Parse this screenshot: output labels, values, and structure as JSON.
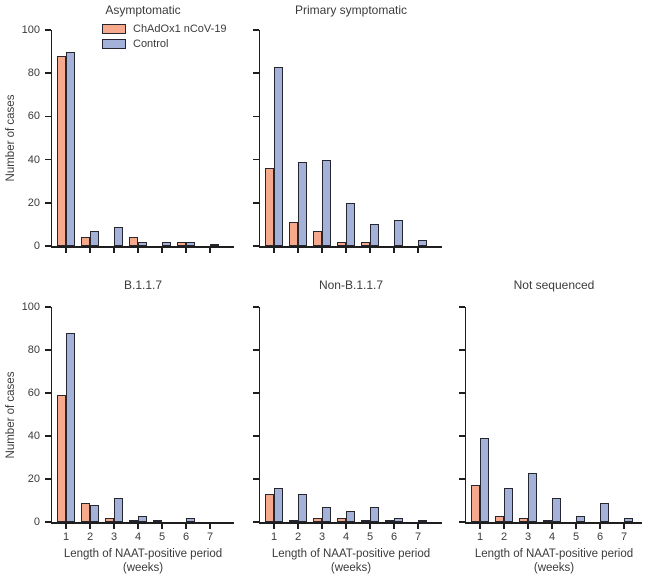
{
  "figure": {
    "ylabel": "Number of cases",
    "xlabel_line1": "Length of NAAT-positive period",
    "xlabel_line2": "(weeks)",
    "y_ticks": [
      0,
      20,
      40,
      60,
      80,
      100
    ],
    "x_ticks": [
      "1",
      "2",
      "3",
      "4",
      "5",
      "6",
      "7"
    ],
    "colors": {
      "chadox1_fill": "#f6a98c",
      "control_fill": "#a4b1d9",
      "bar_outline": "#26262e",
      "axis": "#1e1e1e",
      "text": "#3b3b3b"
    },
    "legend": [
      {
        "label": "ChAdOx1 nCoV-19",
        "series": "chadox1"
      },
      {
        "label": "Control",
        "series": "control"
      }
    ]
  },
  "chart_data": [
    {
      "type": "bar",
      "title": "Asymptomatic",
      "categories": [
        "1",
        "2",
        "3",
        "4",
        "5",
        "6",
        "7"
      ],
      "series": [
        {
          "name": "ChAdOx1 nCoV-19",
          "values": [
            88,
            4,
            0,
            4,
            0,
            2,
            0
          ]
        },
        {
          "name": "Control",
          "values": [
            90,
            7,
            9,
            2,
            2,
            2,
            1
          ]
        }
      ],
      "ylim": [
        0,
        100
      ],
      "layout": {
        "row": 0,
        "col": 0,
        "show_y_tick_labels": true,
        "show_x_tick_labels": false,
        "show_ylabel": true,
        "show_xlabel": false,
        "show_legend": true
      }
    },
    {
      "type": "bar",
      "title": "Primary symptomatic",
      "categories": [
        "1",
        "2",
        "3",
        "4",
        "5",
        "6",
        "7"
      ],
      "series": [
        {
          "name": "ChAdOx1 nCoV-19",
          "values": [
            36,
            11,
            7,
            2,
            2,
            0,
            0
          ]
        },
        {
          "name": "Control",
          "values": [
            83,
            39,
            40,
            20,
            10,
            12,
            3
          ]
        }
      ],
      "ylim": [
        0,
        100
      ],
      "layout": {
        "row": 0,
        "col": 1,
        "show_y_tick_labels": false,
        "show_x_tick_labels": false,
        "show_ylabel": false,
        "show_xlabel": false,
        "show_legend": false
      }
    },
    {
      "type": "bar",
      "title": "B.1.1.7",
      "categories": [
        "1",
        "2",
        "3",
        "4",
        "5",
        "6",
        "7"
      ],
      "series": [
        {
          "name": "ChAdOx1 nCoV-19",
          "values": [
            59,
            9,
            2,
            1,
            1,
            0,
            0
          ]
        },
        {
          "name": "Control",
          "values": [
            88,
            8,
            11,
            3,
            0,
            2,
            0
          ]
        }
      ],
      "ylim": [
        0,
        100
      ],
      "layout": {
        "row": 1,
        "col": 0,
        "show_y_tick_labels": true,
        "show_x_tick_labels": true,
        "show_ylabel": true,
        "show_xlabel": true,
        "show_legend": false
      }
    },
    {
      "type": "bar",
      "title": "Non-B.1.1.7",
      "categories": [
        "1",
        "2",
        "3",
        "4",
        "5",
        "6",
        "7"
      ],
      "series": [
        {
          "name": "ChAdOx1 nCoV-19",
          "values": [
            13,
            1,
            2,
            2,
            1,
            1,
            0
          ]
        },
        {
          "name": "Control",
          "values": [
            16,
            13,
            7,
            5,
            7,
            2,
            1
          ]
        }
      ],
      "ylim": [
        0,
        100
      ],
      "layout": {
        "row": 1,
        "col": 1,
        "show_y_tick_labels": false,
        "show_x_tick_labels": true,
        "show_ylabel": false,
        "show_xlabel": true,
        "show_legend": false
      }
    },
    {
      "type": "bar",
      "title": "Not sequenced",
      "categories": [
        "1",
        "2",
        "3",
        "4",
        "5",
        "6",
        "7"
      ],
      "series": [
        {
          "name": "ChAdOx1 nCoV-19",
          "values": [
            17,
            3,
            2,
            1,
            0,
            0,
            0
          ]
        },
        {
          "name": "Control",
          "values": [
            39,
            16,
            23,
            11,
            3,
            9,
            2
          ]
        }
      ],
      "ylim": [
        0,
        100
      ],
      "layout": {
        "row": 1,
        "col": 2,
        "show_y_tick_labels": false,
        "show_x_tick_labels": true,
        "show_ylabel": false,
        "show_xlabel": true,
        "show_legend": false
      }
    }
  ]
}
